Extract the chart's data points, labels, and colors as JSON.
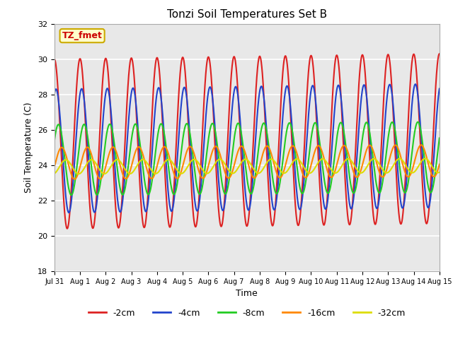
{
  "title": "Tonzi Soil Temperatures Set B",
  "xlabel": "Time",
  "ylabel": "Soil Temperature (C)",
  "annotation": "TZ_fmet",
  "annotation_color": "#cc0000",
  "annotation_bg": "#ffffcc",
  "annotation_border": "#ccaa00",
  "ylim": [
    18,
    32
  ],
  "yticks": [
    18,
    20,
    22,
    24,
    26,
    28,
    30,
    32
  ],
  "xtick_labels": [
    "Jul 31",
    "Aug 1",
    "Aug 2",
    "Aug 3",
    "Aug 4",
    "Aug 5",
    "Aug 6",
    "Aug 7",
    "Aug 8",
    "Aug 9",
    "Aug 10",
    "Aug 11",
    "Aug 12",
    "Aug 13",
    "Aug 14",
    "Aug 15"
  ],
  "legend": [
    {
      "label": "-2cm",
      "color": "#dd2222",
      "lw": 1.5
    },
    {
      "label": "-4cm",
      "color": "#2244cc",
      "lw": 1.5
    },
    {
      "label": "-8cm",
      "color": "#22cc22",
      "lw": 1.5
    },
    {
      "label": "-16cm",
      "color": "#ff8800",
      "lw": 1.5
    },
    {
      "label": "-32cm",
      "color": "#dddd00",
      "lw": 1.5
    }
  ],
  "fig_bg": "#ffffff",
  "axes_bg": "#e8e8e8",
  "grid_color": "#ffffff",
  "series": {
    "2cm": {
      "mean": 25.2,
      "amp": 4.8,
      "phase": 0.0,
      "amp_trend": 0.0,
      "mean_trend": 0.02
    },
    "4cm": {
      "mean": 24.8,
      "amp": 3.5,
      "phase": -0.4,
      "amp_trend": 0.0,
      "mean_trend": 0.02
    },
    "8cm": {
      "mean": 24.3,
      "amp": 2.0,
      "phase": -1.0,
      "amp_trend": 0.0,
      "mean_trend": 0.01
    },
    "16cm": {
      "mean": 24.1,
      "amp": 0.9,
      "phase": -1.8,
      "amp_trend": 0.0,
      "mean_trend": 0.01
    },
    "32cm": {
      "mean": 23.9,
      "amp": 0.4,
      "phase": -2.8,
      "amp_trend": 0.0,
      "mean_trend": 0.005
    }
  }
}
